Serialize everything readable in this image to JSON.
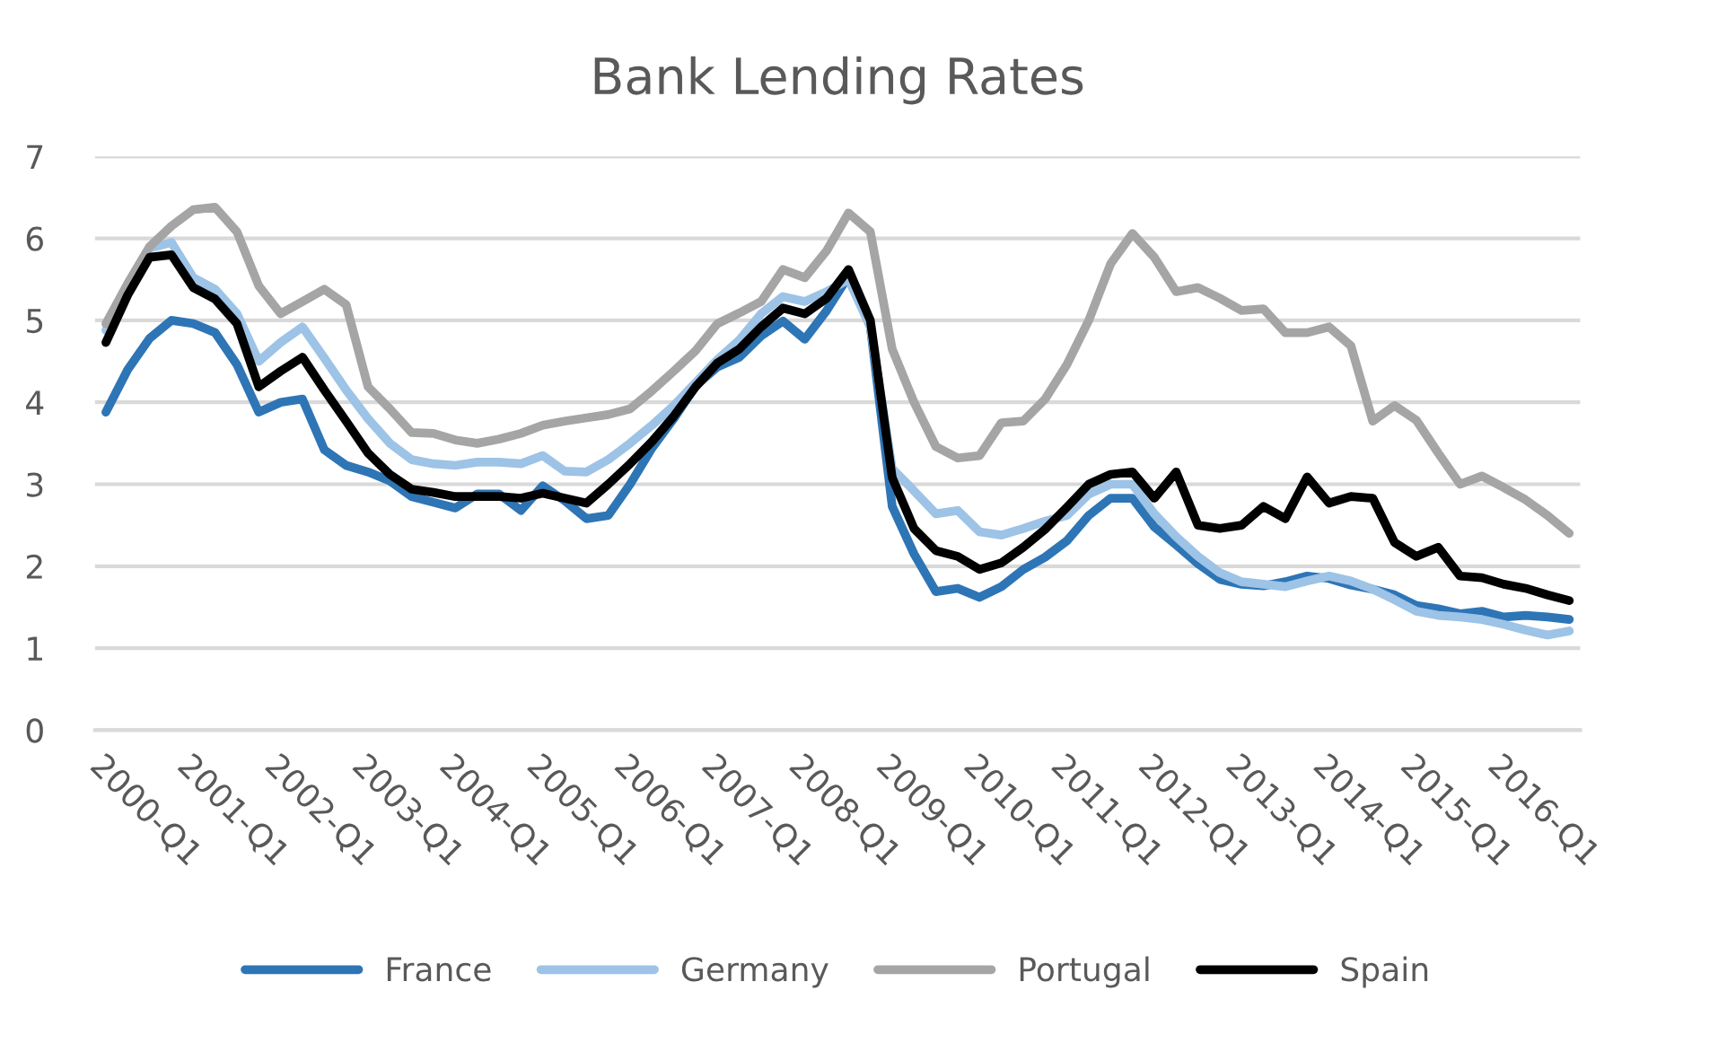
{
  "chart_data": {
    "type": "line",
    "title": "Bank Lending Rates",
    "categories": [
      "2000-Q1",
      null,
      null,
      null,
      "2001-Q1",
      null,
      null,
      null,
      "2002-Q1",
      null,
      null,
      null,
      "2003-Q1",
      null,
      null,
      null,
      "2004-Q1",
      null,
      null,
      null,
      "2005-Q1",
      null,
      null,
      null,
      "2006-Q1",
      null,
      null,
      null,
      "2007-Q1",
      null,
      null,
      null,
      "2008-Q1",
      null,
      null,
      null,
      "2009-Q1",
      null,
      null,
      null,
      "2010-Q1",
      null,
      null,
      null,
      "2011-Q1",
      null,
      null,
      null,
      "2012-Q1",
      null,
      null,
      null,
      "2013-Q1",
      null,
      null,
      null,
      "2014-Q1",
      null,
      null,
      null,
      "2015-Q1",
      null,
      null,
      null,
      "2016-Q1",
      null,
      null,
      null
    ],
    "series": [
      {
        "name": "France",
        "color": "#2e75b6",
        "values": [
          3.88,
          4.4,
          4.78,
          5.0,
          4.96,
          4.85,
          4.46,
          3.88,
          4.0,
          4.04,
          3.42,
          3.23,
          3.15,
          3.04,
          2.85,
          2.78,
          2.71,
          2.88,
          2.88,
          2.68,
          2.98,
          2.8,
          2.58,
          2.62,
          3.0,
          3.44,
          3.8,
          4.2,
          4.43,
          4.55,
          4.81,
          4.99,
          4.77,
          5.12,
          5.54,
          4.92,
          2.73,
          2.15,
          1.69,
          1.73,
          1.62,
          1.75,
          1.96,
          2.11,
          2.31,
          2.62,
          2.83,
          2.83,
          2.48,
          2.26,
          2.03,
          1.84,
          1.78,
          1.76,
          1.81,
          1.88,
          1.85,
          1.77,
          1.72,
          1.65,
          1.52,
          1.48,
          1.42,
          1.45,
          1.38,
          1.4,
          1.38,
          1.35
        ]
      },
      {
        "name": "Germany",
        "color": "#9dc3e6",
        "values": [
          4.88,
          5.38,
          5.88,
          5.95,
          5.52,
          5.38,
          5.08,
          4.5,
          4.73,
          4.92,
          4.54,
          4.15,
          3.8,
          3.5,
          3.3,
          3.25,
          3.23,
          3.27,
          3.27,
          3.25,
          3.35,
          3.16,
          3.15,
          3.3,
          3.5,
          3.72,
          3.96,
          4.24,
          4.52,
          4.76,
          5.08,
          5.29,
          5.23,
          5.35,
          5.5,
          4.92,
          3.19,
          2.92,
          2.64,
          2.68,
          2.42,
          2.38,
          2.46,
          2.55,
          2.62,
          2.88,
          3.0,
          3.0,
          2.64,
          2.36,
          2.12,
          1.92,
          1.81,
          1.78,
          1.75,
          1.82,
          1.88,
          1.82,
          1.72,
          1.59,
          1.45,
          1.4,
          1.38,
          1.35,
          1.29,
          1.22,
          1.16,
          1.21
        ]
      },
      {
        "name": "Portugal",
        "color": "#a5a5a5",
        "values": [
          4.96,
          5.45,
          5.9,
          6.15,
          6.35,
          6.38,
          6.08,
          5.42,
          5.08,
          5.23,
          5.38,
          5.19,
          4.19,
          3.92,
          3.63,
          3.62,
          3.54,
          3.5,
          3.55,
          3.62,
          3.72,
          3.77,
          3.81,
          3.85,
          3.92,
          4.14,
          4.38,
          4.63,
          4.96,
          5.09,
          5.23,
          5.62,
          5.52,
          5.85,
          6.31,
          6.08,
          4.65,
          4.0,
          3.46,
          3.32,
          3.35,
          3.75,
          3.77,
          4.04,
          4.46,
          5.0,
          5.69,
          6.06,
          5.77,
          5.35,
          5.4,
          5.27,
          5.12,
          5.14,
          4.85,
          4.85,
          4.92,
          4.69,
          3.77,
          3.96,
          3.78,
          3.38,
          3.0,
          3.1,
          2.96,
          2.81,
          2.62,
          2.4
        ]
      },
      {
        "name": "Spain",
        "color": "#000000",
        "values": [
          4.73,
          5.31,
          5.77,
          5.8,
          5.4,
          5.26,
          4.96,
          4.19,
          4.38,
          4.55,
          4.15,
          3.77,
          3.38,
          3.12,
          2.94,
          2.9,
          2.85,
          2.85,
          2.85,
          2.83,
          2.89,
          2.83,
          2.77,
          3.0,
          3.25,
          3.52,
          3.83,
          4.19,
          4.48,
          4.65,
          4.92,
          5.15,
          5.08,
          5.27,
          5.62,
          5.0,
          3.08,
          2.46,
          2.19,
          2.12,
          1.96,
          2.04,
          2.23,
          2.45,
          2.72,
          3.0,
          3.12,
          3.15,
          2.83,
          3.15,
          2.5,
          2.46,
          2.5,
          2.73,
          2.58,
          3.09,
          2.77,
          2.85,
          2.83,
          2.29,
          2.12,
          2.23,
          1.88,
          1.86,
          1.78,
          1.73,
          1.65,
          1.58
        ]
      }
    ],
    "ylim": [
      0,
      7
    ],
    "yticks": [
      0,
      1,
      2,
      3,
      4,
      5,
      6,
      7
    ],
    "grid": "y",
    "legend": "bottom",
    "line_style": "solid",
    "marker": "none"
  }
}
